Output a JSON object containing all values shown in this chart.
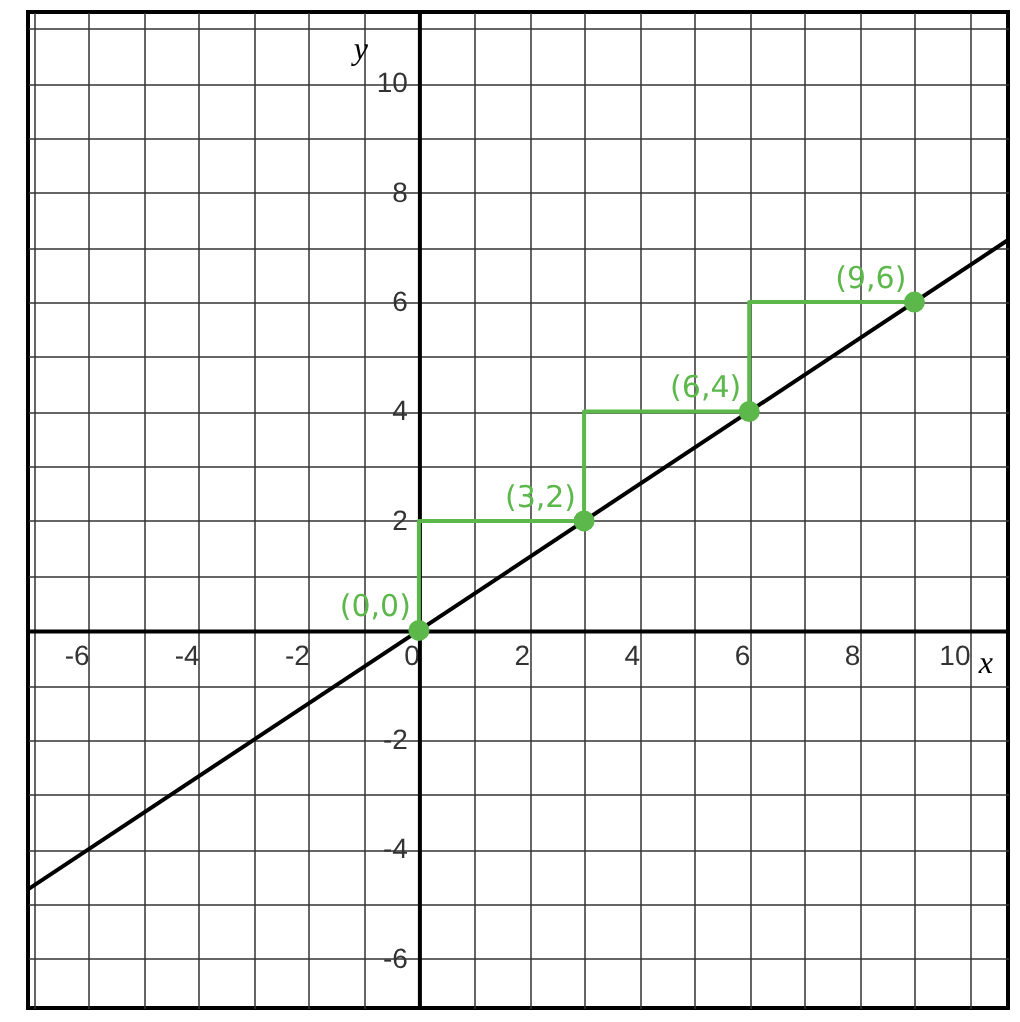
{
  "chart_data": {
    "type": "line",
    "xlabel": "x",
    "ylabel": "y",
    "xlim": [
      -7.1,
      10.7
    ],
    "ylim": [
      -6.9,
      11.3
    ],
    "xticks": [
      {
        "value": -7,
        "label": null
      },
      -6,
      {
        "value": -5,
        "label": null
      },
      -4,
      {
        "value": -3,
        "label": null
      },
      -2,
      {
        "value": -1,
        "label": null
      },
      0,
      {
        "value": 1,
        "label": null
      },
      2,
      {
        "value": 3,
        "label": null
      },
      4,
      {
        "value": 5,
        "label": null
      },
      6,
      {
        "value": 7,
        "label": null
      },
      8,
      {
        "value": 9,
        "label": null
      },
      10
    ],
    "yticks": [
      {
        "value": -6,
        "label": "-6"
      },
      {
        "value": -5,
        "label": null
      },
      -4,
      {
        "value": -3,
        "label": null
      },
      -2,
      {
        "value": -1,
        "label": null
      },
      {
        "value": 0,
        "label": null
      },
      {
        "value": 1,
        "label": null
      },
      2,
      {
        "value": 3,
        "label": null
      },
      4,
      {
        "value": 5,
        "label": null
      },
      6,
      {
        "value": 7,
        "label": null
      },
      8,
      {
        "value": 9,
        "label": null
      },
      10,
      {
        "value": 11,
        "label": null
      }
    ],
    "grid": true,
    "series": [
      {
        "color": "#000000",
        "x": [
          -7.1,
          10.7
        ],
        "values": [
          -4.733,
          7.133
        ]
      },
      {
        "type": "line",
        "color": "#5cb84a",
        "x": [
          0,
          0,
          3,
          3,
          6,
          6,
          9
        ],
        "values": [
          0,
          2,
          2,
          4,
          4,
          6,
          6
        ]
      },
      {
        "type": "scatter",
        "color": "#5cb84a",
        "marker": "circle",
        "x": [
          0,
          3,
          6,
          9
        ],
        "values": [
          0,
          2,
          4,
          6
        ]
      }
    ],
    "annotations": [
      {
        "text": "(0,0)",
        "x": 0,
        "y": 0
      },
      {
        "text": "(3,2)",
        "x": 3,
        "y": 2
      },
      {
        "text": "(6,4)",
        "x": 6,
        "y": 4
      },
      {
        "text": "(9,6)",
        "x": 9,
        "y": 6
      }
    ]
  }
}
